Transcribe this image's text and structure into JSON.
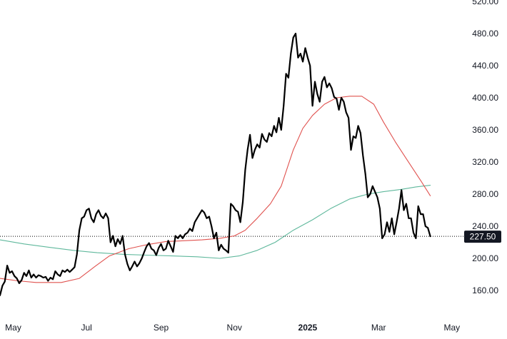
{
  "chart_data": {
    "type": "line",
    "title": "",
    "xlabel": "",
    "ylabel": "",
    "ylim": [
      140,
      520
    ],
    "xlim": [
      "2024-04-20",
      "2025-05-10"
    ],
    "grid": false,
    "y_ticks": [
      "160.00",
      "200.00",
      "240.00",
      "280.00",
      "320.00",
      "360.00",
      "400.00",
      "440.00",
      "480.00",
      "520.00"
    ],
    "x_ticks": [
      {
        "label": "May",
        "date": "2024-05-01",
        "bold": false
      },
      {
        "label": "Jul",
        "date": "2024-07-01",
        "bold": false
      },
      {
        "label": "Sep",
        "date": "2024-09-01",
        "bold": false
      },
      {
        "label": "Nov",
        "date": "2024-11-01",
        "bold": false
      },
      {
        "label": "2025",
        "date": "2025-01-01",
        "bold": true
      },
      {
        "label": "Mar",
        "date": "2025-03-01",
        "bold": false
      },
      {
        "label": "May",
        "date": "2025-05-01",
        "bold": false
      }
    ],
    "last_price": {
      "value": 227.5,
      "label": "227.50"
    },
    "colors": {
      "price": "#000000",
      "ma_fast": "#e0524f",
      "ma_slow": "#5fb89c",
      "last_price_line": "#000000"
    },
    "series": [
      {
        "key": "price",
        "points": [
          [
            "2024-04-20",
            154
          ],
          [
            "2024-04-22",
            166
          ],
          [
            "2024-04-24",
            171
          ],
          [
            "2024-04-26",
            191
          ],
          [
            "2024-04-28",
            182
          ],
          [
            "2024-04-30",
            184
          ],
          [
            "2024-05-02",
            178
          ],
          [
            "2024-05-04",
            175
          ],
          [
            "2024-05-06",
            169
          ],
          [
            "2024-05-08",
            173
          ],
          [
            "2024-05-10",
            182
          ],
          [
            "2024-05-12",
            178
          ],
          [
            "2024-05-14",
            185
          ],
          [
            "2024-05-16",
            176
          ],
          [
            "2024-05-18",
            180
          ],
          [
            "2024-05-20",
            176
          ],
          [
            "2024-05-22",
            179
          ],
          [
            "2024-05-24",
            178
          ],
          [
            "2024-05-26",
            176
          ],
          [
            "2024-05-28",
            177
          ],
          [
            "2024-05-30",
            172
          ],
          [
            "2024-06-01",
            176
          ],
          [
            "2024-06-03",
            174
          ],
          [
            "2024-06-05",
            184
          ],
          [
            "2024-06-07",
            180
          ],
          [
            "2024-06-09",
            178
          ],
          [
            "2024-06-11",
            185
          ],
          [
            "2024-06-13",
            183
          ],
          [
            "2024-06-15",
            186
          ],
          [
            "2024-06-17",
            183
          ],
          [
            "2024-06-19",
            186
          ],
          [
            "2024-06-21",
            189
          ],
          [
            "2024-06-23",
            205
          ],
          [
            "2024-06-25",
            235
          ],
          [
            "2024-06-27",
            250
          ],
          [
            "2024-06-29",
            252
          ],
          [
            "2024-07-01",
            260
          ],
          [
            "2024-07-03",
            262
          ],
          [
            "2024-07-05",
            250
          ],
          [
            "2024-07-07",
            245
          ],
          [
            "2024-07-09",
            255
          ],
          [
            "2024-07-11",
            260
          ],
          [
            "2024-07-13",
            253
          ],
          [
            "2024-07-15",
            250
          ],
          [
            "2024-07-17",
            256
          ],
          [
            "2024-07-19",
            250
          ],
          [
            "2024-07-21",
            220
          ],
          [
            "2024-07-23",
            228
          ],
          [
            "2024-07-25",
            215
          ],
          [
            "2024-07-27",
            224
          ],
          [
            "2024-07-29",
            218
          ],
          [
            "2024-07-31",
            228
          ],
          [
            "2024-08-02",
            205
          ],
          [
            "2024-08-04",
            193
          ],
          [
            "2024-08-06",
            185
          ],
          [
            "2024-08-08",
            190
          ],
          [
            "2024-08-10",
            196
          ],
          [
            "2024-08-12",
            190
          ],
          [
            "2024-08-14",
            194
          ],
          [
            "2024-08-16",
            200
          ],
          [
            "2024-08-18",
            208
          ],
          [
            "2024-08-20",
            215
          ],
          [
            "2024-08-22",
            219
          ],
          [
            "2024-08-24",
            212
          ],
          [
            "2024-08-26",
            210
          ],
          [
            "2024-08-28",
            204
          ],
          [
            "2024-08-30",
            213
          ],
          [
            "2024-09-01",
            218
          ],
          [
            "2024-09-03",
            210
          ],
          [
            "2024-09-05",
            212
          ],
          [
            "2024-09-07",
            222
          ],
          [
            "2024-09-09",
            215
          ],
          [
            "2024-09-11",
            208
          ],
          [
            "2024-09-13",
            228
          ],
          [
            "2024-09-15",
            225
          ],
          [
            "2024-09-17",
            229
          ],
          [
            "2024-09-19",
            225
          ],
          [
            "2024-09-21",
            230
          ],
          [
            "2024-09-23",
            232
          ],
          [
            "2024-09-25",
            237
          ],
          [
            "2024-09-27",
            234
          ],
          [
            "2024-09-29",
            245
          ],
          [
            "2024-10-01",
            250
          ],
          [
            "2024-10-03",
            255
          ],
          [
            "2024-10-05",
            260
          ],
          [
            "2024-10-07",
            257
          ],
          [
            "2024-10-09",
            250
          ],
          [
            "2024-10-11",
            252
          ],
          [
            "2024-10-13",
            240
          ],
          [
            "2024-10-15",
            225
          ],
          [
            "2024-10-17",
            232
          ],
          [
            "2024-10-19",
            210
          ],
          [
            "2024-10-21",
            217
          ],
          [
            "2024-10-23",
            212
          ],
          [
            "2024-10-25",
            210
          ],
          [
            "2024-10-27",
            207
          ],
          [
            "2024-10-29",
            268
          ],
          [
            "2024-10-31",
            265
          ],
          [
            "2024-11-02",
            260
          ],
          [
            "2024-11-04",
            258
          ],
          [
            "2024-11-06",
            245
          ],
          [
            "2024-11-08",
            270
          ],
          [
            "2024-11-10",
            310
          ],
          [
            "2024-11-12",
            335
          ],
          [
            "2024-11-14",
            354
          ],
          [
            "2024-11-16",
            325
          ],
          [
            "2024-11-18",
            335
          ],
          [
            "2024-11-20",
            342
          ],
          [
            "2024-11-22",
            338
          ],
          [
            "2024-11-24",
            355
          ],
          [
            "2024-11-26",
            348
          ],
          [
            "2024-11-28",
            345
          ],
          [
            "2024-11-30",
            356
          ],
          [
            "2024-12-02",
            352
          ],
          [
            "2024-12-04",
            365
          ],
          [
            "2024-12-06",
            357
          ],
          [
            "2024-12-08",
            375
          ],
          [
            "2024-12-10",
            360
          ],
          [
            "2024-12-12",
            390
          ],
          [
            "2024-12-14",
            430
          ],
          [
            "2024-12-16",
            425
          ],
          [
            "2024-12-18",
            455
          ],
          [
            "2024-12-20",
            475
          ],
          [
            "2024-12-22",
            480
          ],
          [
            "2024-12-24",
            450
          ],
          [
            "2024-12-26",
            455
          ],
          [
            "2024-12-28",
            445
          ],
          [
            "2024-12-30",
            462
          ],
          [
            "2025-01-01",
            450
          ],
          [
            "2025-01-03",
            440
          ],
          [
            "2025-01-05",
            390
          ],
          [
            "2025-01-07",
            420
          ],
          [
            "2025-01-09",
            405
          ],
          [
            "2025-01-11",
            395
          ],
          [
            "2025-01-13",
            420
          ],
          [
            "2025-01-15",
            426
          ],
          [
            "2025-01-17",
            413
          ],
          [
            "2025-01-19",
            418
          ],
          [
            "2025-01-21",
            412
          ],
          [
            "2025-01-23",
            401
          ],
          [
            "2025-01-25",
            399
          ],
          [
            "2025-01-27",
            385
          ],
          [
            "2025-01-29",
            400
          ],
          [
            "2025-01-31",
            395
          ],
          [
            "2025-02-02",
            382
          ],
          [
            "2025-02-04",
            375
          ],
          [
            "2025-02-06",
            335
          ],
          [
            "2025-02-08",
            352
          ],
          [
            "2025-02-10",
            350
          ],
          [
            "2025-02-12",
            365
          ],
          [
            "2025-02-14",
            356
          ],
          [
            "2025-02-16",
            328
          ],
          [
            "2025-02-18",
            305
          ],
          [
            "2025-02-20",
            276
          ],
          [
            "2025-02-22",
            280
          ],
          [
            "2025-02-24",
            290
          ],
          [
            "2025-02-26",
            283
          ],
          [
            "2025-02-28",
            276
          ],
          [
            "2025-03-02",
            262
          ],
          [
            "2025-03-04",
            225
          ],
          [
            "2025-03-06",
            230
          ],
          [
            "2025-03-08",
            245
          ],
          [
            "2025-03-10",
            233
          ],
          [
            "2025-03-12",
            250
          ],
          [
            "2025-03-14",
            230
          ],
          [
            "2025-03-16",
            245
          ],
          [
            "2025-03-18",
            262
          ],
          [
            "2025-03-20",
            285
          ],
          [
            "2025-03-22",
            260
          ],
          [
            "2025-03-24",
            268
          ],
          [
            "2025-03-26",
            250
          ],
          [
            "2025-03-28",
            250
          ],
          [
            "2025-03-30",
            232
          ],
          [
            "2025-04-01",
            225
          ],
          [
            "2025-04-03",
            265
          ],
          [
            "2025-04-05",
            255
          ],
          [
            "2025-04-07",
            255
          ],
          [
            "2025-04-09",
            240
          ],
          [
            "2025-04-11",
            238
          ],
          [
            "2025-04-13",
            227.5
          ]
        ]
      },
      {
        "key": "ma_fast",
        "points": [
          [
            "2024-04-20",
            175
          ],
          [
            "2024-05-05",
            172
          ],
          [
            "2024-05-20",
            170
          ],
          [
            "2024-06-10",
            170
          ],
          [
            "2024-06-25",
            175
          ],
          [
            "2024-07-08",
            190
          ],
          [
            "2024-07-20",
            203
          ],
          [
            "2024-08-05",
            212
          ],
          [
            "2024-08-20",
            217
          ],
          [
            "2024-09-05",
            221
          ],
          [
            "2024-09-20",
            222
          ],
          [
            "2024-10-05",
            223
          ],
          [
            "2024-10-20",
            225
          ],
          [
            "2024-11-01",
            228
          ],
          [
            "2024-11-10",
            235
          ],
          [
            "2024-11-20",
            250
          ],
          [
            "2024-12-01",
            268
          ],
          [
            "2024-12-10",
            290
          ],
          [
            "2024-12-20",
            335
          ],
          [
            "2024-12-28",
            362
          ],
          [
            "2025-01-05",
            378
          ],
          [
            "2025-01-15",
            392
          ],
          [
            "2025-01-25",
            400
          ],
          [
            "2025-02-05",
            402
          ],
          [
            "2025-02-15",
            402
          ],
          [
            "2025-02-25",
            392
          ],
          [
            "2025-03-05",
            370
          ],
          [
            "2025-03-15",
            345
          ],
          [
            "2025-03-25",
            322
          ],
          [
            "2025-04-05",
            297
          ],
          [
            "2025-04-13",
            278
          ]
        ]
      },
      {
        "key": "ma_slow",
        "points": [
          [
            "2024-04-20",
            223
          ],
          [
            "2024-05-10",
            218
          ],
          [
            "2024-05-30",
            214
          ],
          [
            "2024-06-20",
            210
          ],
          [
            "2024-07-10",
            207
          ],
          [
            "2024-08-01",
            205
          ],
          [
            "2024-08-20",
            204
          ],
          [
            "2024-09-10",
            203
          ],
          [
            "2024-10-01",
            202
          ],
          [
            "2024-10-20",
            200
          ],
          [
            "2024-11-05",
            203
          ],
          [
            "2024-11-20",
            210
          ],
          [
            "2024-12-05",
            220
          ],
          [
            "2024-12-20",
            235
          ],
          [
            "2025-01-05",
            248
          ],
          [
            "2025-01-20",
            262
          ],
          [
            "2025-02-05",
            274
          ],
          [
            "2025-02-20",
            280
          ],
          [
            "2025-03-05",
            283
          ],
          [
            "2025-03-20",
            286
          ],
          [
            "2025-04-01",
            289
          ],
          [
            "2025-04-13",
            291
          ]
        ]
      }
    ]
  }
}
